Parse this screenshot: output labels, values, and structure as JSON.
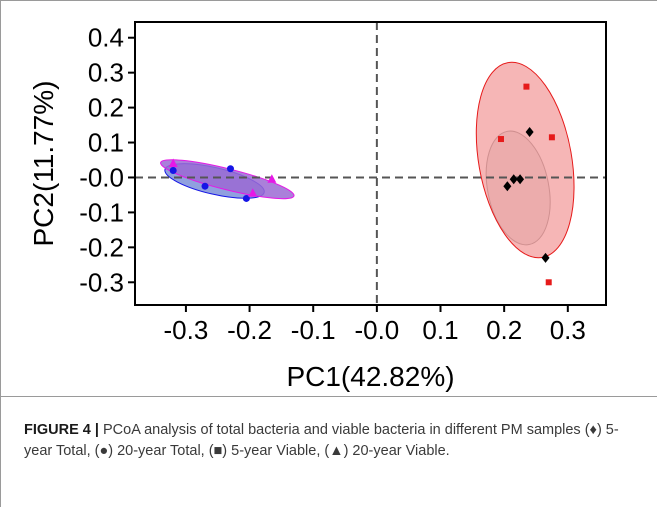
{
  "chart_data": {
    "type": "scatter",
    "xlabel": "PC1(42.82%)",
    "ylabel": "PC2(11.77%)",
    "xlim": [
      -0.38,
      0.36
    ],
    "ylim": [
      -0.365,
      0.445
    ],
    "xticks": [
      -0.3,
      -0.2,
      -0.1,
      0.0,
      0.1,
      0.2,
      0.3
    ],
    "xtick_labels": [
      "-0.3",
      "-0.2",
      "-0.1",
      "-0.0",
      "0.1",
      "0.2",
      "0.3"
    ],
    "yticks": [
      0.4,
      0.3,
      0.2,
      0.1,
      0.0,
      -0.1,
      -0.2,
      -0.3
    ],
    "ytick_labels": [
      "0.4",
      "0.3",
      "0.2",
      "0.1",
      "-0.0",
      "-0.1",
      "-0.2",
      "-0.3"
    ],
    "reference_lines": {
      "x": 0,
      "y": 0
    },
    "grid": false,
    "series": [
      {
        "marker": "diamond",
        "color": "#000000",
        "points": [
          [
            0.205,
            -0.025
          ],
          [
            0.215,
            -0.005
          ],
          [
            0.225,
            -0.005
          ],
          [
            0.24,
            0.13
          ],
          [
            0.265,
            -0.23
          ]
        ],
        "ellipse": {
          "cx": 0.222,
          "cy": -0.03,
          "rx": 0.048,
          "ry": 0.165,
          "angle": -11,
          "fill": "#b2b2b2",
          "stroke": "#000000"
        }
      },
      {
        "marker": "circle",
        "color": "#1515e6",
        "points": [
          [
            -0.32,
            0.02
          ],
          [
            -0.23,
            0.025
          ],
          [
            -0.27,
            -0.025
          ],
          [
            -0.205,
            -0.06
          ]
        ],
        "ellipse": {
          "cx": -0.255,
          "cy": -0.01,
          "rx": 0.08,
          "ry": 0.038,
          "angle": 13,
          "fill": "#7d8fd9",
          "stroke": "#1515e6"
        }
      },
      {
        "marker": "square",
        "color": "#e61a1a",
        "points": [
          [
            0.195,
            0.11
          ],
          [
            0.235,
            0.26
          ],
          [
            0.275,
            0.115
          ],
          [
            0.27,
            -0.3
          ]
        ],
        "ellipse": {
          "cx": 0.233,
          "cy": 0.05,
          "rx": 0.073,
          "ry": 0.283,
          "angle": -10,
          "fill": "#f4a9a9",
          "stroke": "#e61a1a"
        }
      },
      {
        "marker": "triangle",
        "color": "#e619e6",
        "points": [
          [
            -0.32,
            0.04
          ],
          [
            -0.165,
            -0.005
          ],
          [
            -0.195,
            -0.045
          ]
        ],
        "ellipse": {
          "cx": -0.235,
          "cy": -0.005,
          "rx": 0.108,
          "ry": 0.03,
          "angle": 14,
          "fill": "#9b6ad4",
          "stroke": "#e619e6"
        }
      }
    ]
  },
  "caption": {
    "label": "FIGURE 4 |",
    "text": " PCoA analysis of total bacteria and viable bacteria in different PM samples (♦) 5-year Total, (●) 20-year Total, (■) 5-year Viable, (▲) 20-year Viable."
  }
}
